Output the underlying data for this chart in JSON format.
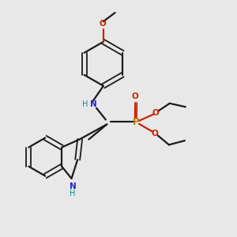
{
  "bg_color": "#e8e8e8",
  "bond_color": "#1a1a1a",
  "N_color": "#2222cc",
  "O_color": "#cc2200",
  "P_color": "#b87800",
  "NH_color": "#009090",
  "figsize": [
    3.0,
    3.0
  ],
  "dpi": 100,
  "xlim": [
    0,
    10
  ],
  "ylim": [
    0,
    10
  ]
}
